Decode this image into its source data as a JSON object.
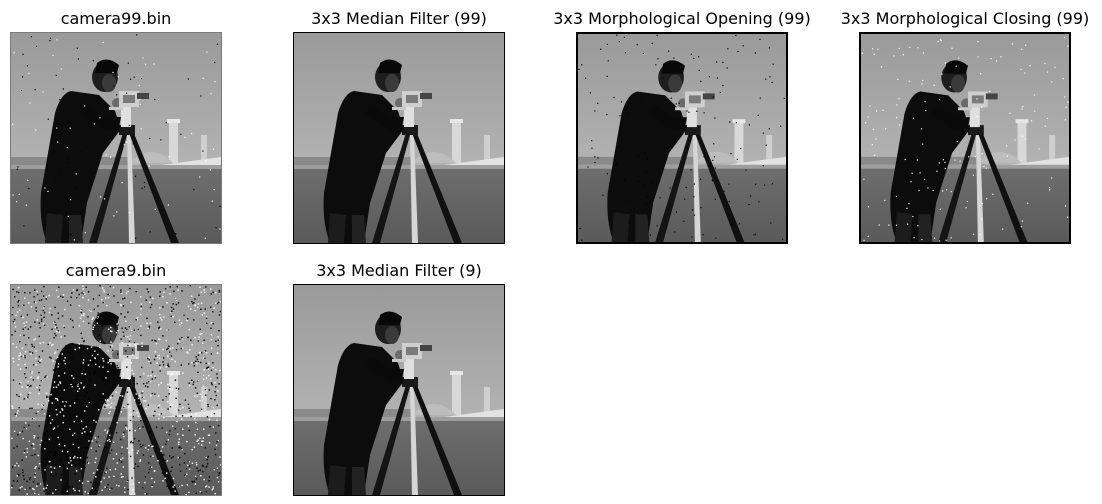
{
  "figure": {
    "panels": [
      {
        "id": "p1",
        "title": "camera99.bin",
        "noise": "sparse-mixed"
      },
      {
        "id": "p2",
        "title": "3x3 Median Filter (99)",
        "noise": "none"
      },
      {
        "id": "p3",
        "title": "3x3 Morphological Opening (99)",
        "noise": "pepper"
      },
      {
        "id": "p4",
        "title": "3x3 Morphological Closing (99)",
        "noise": "salt"
      },
      {
        "id": "p5",
        "title": "camera9.bin",
        "noise": "dense-mixed"
      },
      {
        "id": "p6",
        "title": "3x3 Median Filter (9)",
        "noise": "none"
      }
    ]
  }
}
